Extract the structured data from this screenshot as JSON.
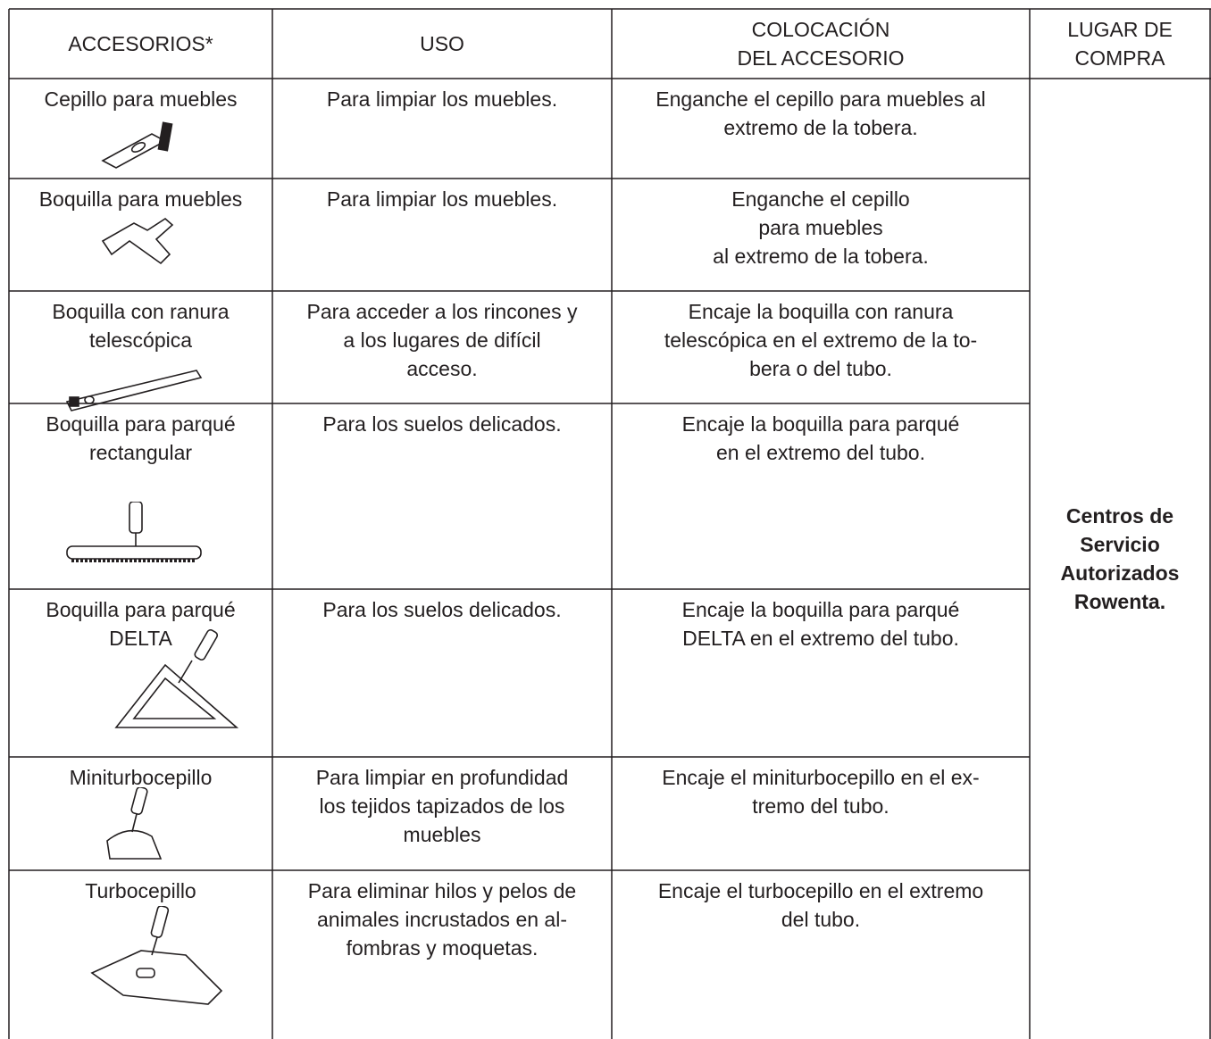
{
  "table": {
    "header": [
      [
        "ACCESORIOS*"
      ],
      [
        "USO"
      ],
      [
        "COLOCACIÓN",
        "DEL ACCESORIO"
      ],
      [
        "LUGAR DE",
        "COMPRA"
      ]
    ],
    "rows": [
      {
        "accessory": [
          "Cepillo para muebles"
        ],
        "use": [
          "Para limpiar los muebles."
        ],
        "placement": [
          "Enganche el cepillo para muebles al",
          "extremo de la tobera."
        ]
      },
      {
        "accessory": [
          "Boquilla para muebles"
        ],
        "use": [
          "Para limpiar los muebles."
        ],
        "placement": [
          "Enganche el cepillo",
          "para muebles",
          "al extremo de la tobera."
        ]
      },
      {
        "accessory": [
          "Boquilla con ranura",
          "telescópica"
        ],
        "use": [
          "Para acceder a los rincones y",
          "a los lugares de difícil",
          "acceso."
        ],
        "placement": [
          "Encaje la boquilla con ranura",
          "telescópica en el extremo de la to-",
          "bera o del tubo."
        ]
      },
      {
        "accessory": [
          "Boquilla para parqué",
          "rectangular"
        ],
        "use": [
          "Para los suelos delicados."
        ],
        "placement": [
          "Encaje la boquilla para parqué",
          "en el extremo del tubo."
        ]
      },
      {
        "accessory": [
          "Boquilla para parqué",
          "DELTA"
        ],
        "use": [
          "Para los suelos delicados."
        ],
        "placement": [
          "Encaje la boquilla para parqué",
          "DELTA en el extremo del tubo."
        ]
      },
      {
        "accessory": [
          "Miniturbocepillo"
        ],
        "use": [
          "Para limpiar en profundidad",
          "los tejidos tapizados de los",
          "muebles"
        ],
        "placement": [
          "Encaje el miniturbocepillo en el ex-",
          "tremo del tubo."
        ]
      },
      {
        "accessory": [
          "Turbocepillo"
        ],
        "use": [
          "Para eliminar hilos y pelos de",
          "animales incrustados en al-",
          "fombras y moquetas."
        ],
        "placement": [
          "Encaje el turbocepillo en el extremo",
          "del tubo."
        ]
      }
    ],
    "purchase": [
      "Centros de",
      "Servicio",
      "Autorizados",
      "Rowenta."
    ]
  }
}
